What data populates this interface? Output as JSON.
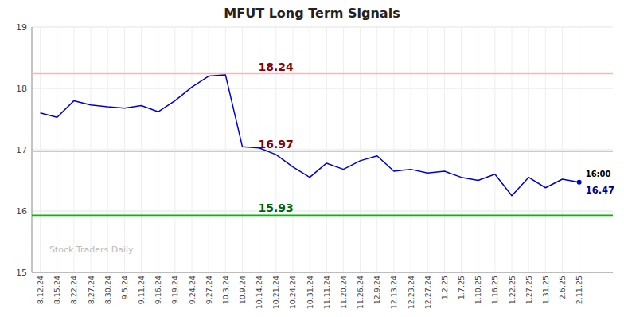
{
  "chart_data": {
    "type": "line",
    "title": "MFUT Long Term Signals",
    "categories": [
      "8.12.24",
      "8.15.24",
      "8.22.24",
      "8.27.24",
      "8.30.24",
      "9.5.24",
      "9.11.24",
      "9.16.24",
      "9.19.24",
      "9.24.24",
      "9.27.24",
      "10.3.24",
      "10.9.24",
      "10.14.24",
      "10.21.24",
      "10.24.24",
      "10.31.24",
      "11.11.24",
      "11.20.24",
      "11.26.24",
      "12.9.24",
      "12.13.24",
      "12.23.24",
      "12.27.24",
      "1.2.25",
      "1.7.25",
      "1.10.25",
      "1.16.25",
      "1.22.25",
      "1.27.25",
      "1.31.25",
      "2.6.25",
      "2.11.25"
    ],
    "values": [
      17.6,
      17.53,
      17.8,
      17.73,
      17.7,
      17.68,
      17.72,
      17.62,
      17.8,
      18.02,
      18.2,
      18.22,
      17.05,
      17.03,
      16.92,
      16.72,
      16.55,
      16.78,
      16.68,
      16.82,
      16.9,
      16.65,
      16.68,
      16.62,
      16.65,
      16.55,
      16.5,
      16.6,
      16.25,
      16.55,
      16.38,
      16.52,
      16.47
    ],
    "color": "#0000CC",
    "ylim": [
      15,
      19
    ],
    "yticks": [
      15,
      16,
      17,
      18,
      19
    ],
    "grid": true,
    "hlines": [
      {
        "value": 18.24,
        "color": "#FFB3B3",
        "label": "18.24",
        "label_color": "#8B0000"
      },
      {
        "value": 16.97,
        "color": "#FFB3B3",
        "label": "16.97",
        "label_color": "#8B0000"
      },
      {
        "value": 15.93,
        "color": "#00BB00",
        "label": "15.93",
        "label_color": "#006600"
      }
    ],
    "annotations": [
      {
        "text": "16:00",
        "color": "#000000"
      },
      {
        "text": "16.47",
        "color": "#00008B"
      }
    ],
    "watermark": "Stock Traders Daily"
  }
}
